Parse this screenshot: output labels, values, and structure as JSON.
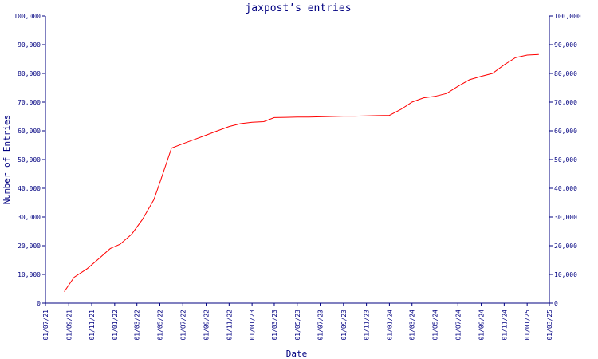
{
  "colors": {
    "axis": "#000080",
    "line": "#ff0000",
    "text": "#000080",
    "background": "#ffffff"
  },
  "chart_data": {
    "type": "line",
    "title": "jaxpost’s entries",
    "xlabel": "Date",
    "ylabel": "Number of Entries",
    "ylim": [
      0,
      100000
    ],
    "xlim": [
      "2021-07-01",
      "2025-03-01"
    ],
    "grid": false,
    "legend": "none",
    "y_ticks": [
      0,
      10000,
      20000,
      30000,
      40000,
      50000,
      60000,
      70000,
      80000,
      90000,
      100000
    ],
    "y_tick_labels": [
      "0",
      "10,000",
      "20,000",
      "30,000",
      "40,000",
      "50,000",
      "60,000",
      "70,000",
      "80,000",
      "90,000",
      "100,000"
    ],
    "x_ticks": [
      "2021-07-01",
      "2021-09-01",
      "2021-11-01",
      "2022-01-01",
      "2022-03-01",
      "2022-05-01",
      "2022-07-01",
      "2022-09-01",
      "2022-11-01",
      "2023-01-01",
      "2023-03-01",
      "2023-05-01",
      "2023-07-01",
      "2023-09-01",
      "2023-11-01",
      "2024-01-01",
      "2024-03-01",
      "2024-05-01",
      "2024-07-01",
      "2024-09-01",
      "2024-11-01",
      "2025-01-01",
      "2025-03-01"
    ],
    "x_tick_labels": [
      "01/07/21",
      "01/09/21",
      "01/11/21",
      "01/01/22",
      "01/03/22",
      "01/05/22",
      "01/07/22",
      "01/09/22",
      "01/11/22",
      "01/01/23",
      "01/03/23",
      "01/05/23",
      "01/07/23",
      "01/09/23",
      "01/11/23",
      "01/01/24",
      "01/03/24",
      "01/05/24",
      "01/07/24",
      "01/09/24",
      "01/11/24",
      "01/01/25",
      "01/03/25"
    ],
    "series": [
      {
        "x": [
          "2021-08-20",
          "2021-09-15",
          "2021-10-20",
          "2021-11-20",
          "2021-12-20",
          "2022-01-15",
          "2022-02-15",
          "2022-03-15",
          "2022-04-15",
          "2022-05-01",
          "2022-06-01",
          "2022-07-01",
          "2022-08-01",
          "2022-09-01",
          "2022-10-01",
          "2022-11-01",
          "2022-12-01",
          "2023-01-01",
          "2023-02-01",
          "2023-03-01",
          "2023-04-01",
          "2023-05-01",
          "2023-06-01",
          "2023-07-01",
          "2023-08-01",
          "2023-09-01",
          "2023-10-01",
          "2023-11-01",
          "2023-12-01",
          "2024-01-01",
          "2024-02-01",
          "2024-03-01",
          "2024-04-01",
          "2024-05-01",
          "2024-06-01",
          "2024-07-01",
          "2024-08-01",
          "2024-09-01",
          "2024-10-01",
          "2024-11-01",
          "2024-12-01",
          "2025-01-01",
          "2025-02-01"
        ],
        "y": [
          4000,
          9000,
          12000,
          15500,
          19000,
          20500,
          24000,
          29000,
          36000,
          42000,
          54000,
          55500,
          57000,
          58500,
          60000,
          61500,
          62500,
          63000,
          63200,
          64600,
          64700,
          64800,
          64800,
          64900,
          65000,
          65100,
          65100,
          65200,
          65300,
          65400,
          67500,
          70000,
          71500,
          72000,
          73000,
          75500,
          77800,
          79000,
          80000,
          83000,
          85500,
          86400,
          86600
        ]
      }
    ]
  }
}
